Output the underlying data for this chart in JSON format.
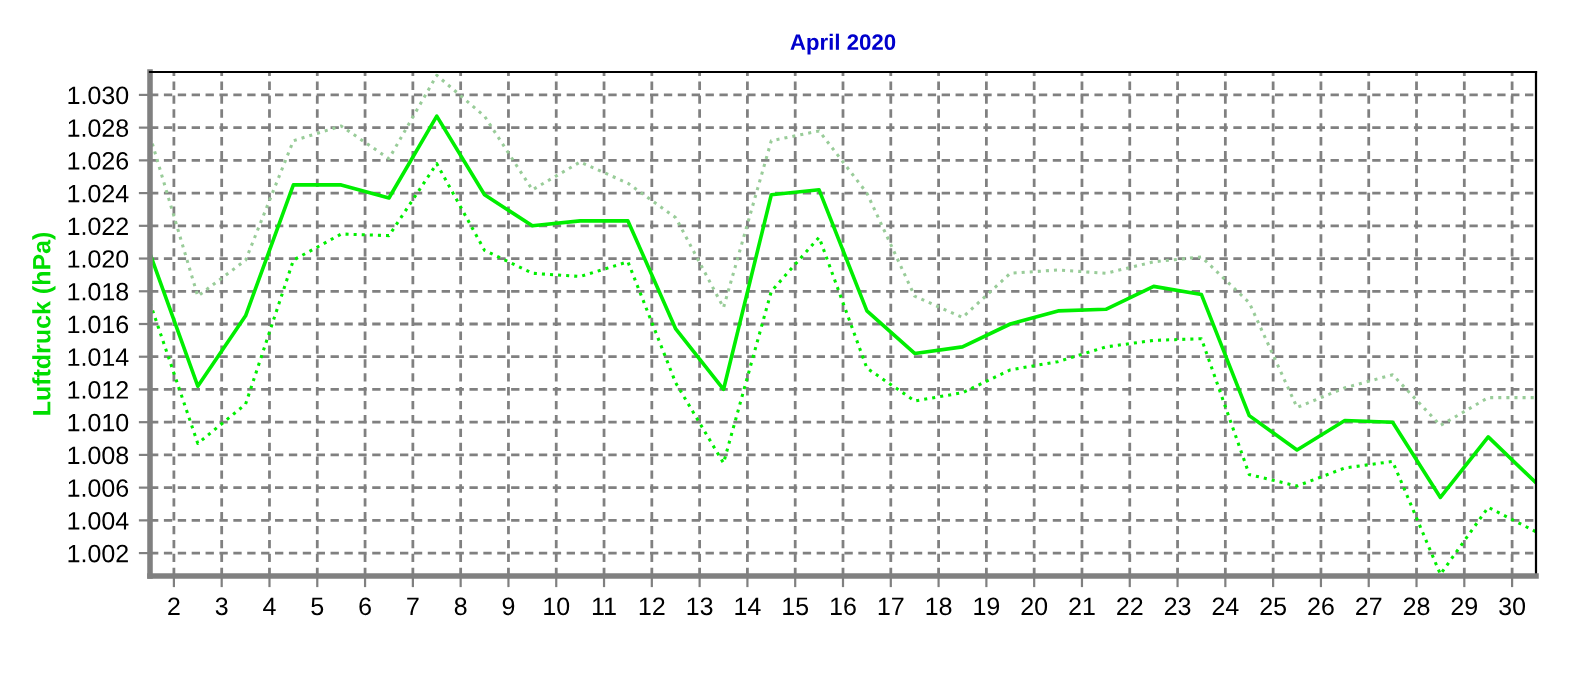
{
  "chart_data": {
    "type": "line",
    "title": "April 2020",
    "ylabel": "Luftdruck (hPa)",
    "x": [
      1.5,
      2.5,
      3.5,
      4.5,
      5.5,
      6.5,
      7.5,
      8.5,
      9.5,
      10.5,
      11.5,
      12.5,
      13.5,
      14.5,
      15.5,
      16.5,
      17.5,
      18.5,
      19.5,
      20.5,
      21.5,
      22.5,
      23.5,
      24.5,
      25.5,
      26.5,
      27.5,
      28.5,
      29.5,
      30.5
    ],
    "series": [
      {
        "color": "#00ee00",
        "line_style": "solid",
        "values": [
          1020.3,
          1012.2,
          1016.5,
          1024.5,
          1024.5,
          1023.7,
          1028.7,
          1023.9,
          1022.0,
          1022.3,
          1022.3,
          1015.7,
          1012.0,
          1023.9,
          1024.2,
          1016.8,
          1014.2,
          1014.6,
          1016.0,
          1016.8,
          1016.9,
          1018.3,
          1017.8,
          1010.4,
          1008.3,
          1010.1,
          1010.0,
          1005.4,
          1009.1,
          1006.3
        ]
      },
      {
        "color": "#99cc99",
        "line_style": "dotted",
        "values": [
          1027.5,
          1017.7,
          1019.9,
          1027.2,
          1028.1,
          1026.1,
          1031.2,
          1028.7,
          1024.2,
          1025.9,
          1024.6,
          1022.5,
          1017.0,
          1027.2,
          1027.8,
          1024.0,
          1017.7,
          1016.4,
          1019.1,
          1019.3,
          1019.1,
          1019.8,
          1020.1,
          1017.3,
          1010.9,
          1012.1,
          1012.9,
          1009.8,
          1011.5,
          1011.5
        ]
      },
      {
        "color": "#00ee00",
        "line_style": "dotted",
        "values": [
          1017.3,
          1008.7,
          1011.1,
          1019.9,
          1021.5,
          1021.4,
          1025.8,
          1020.5,
          1019.1,
          1018.9,
          1019.8,
          1012.4,
          1007.5,
          1018.0,
          1021.3,
          1013.3,
          1011.3,
          1011.8,
          1013.2,
          1013.7,
          1014.6,
          1015.0,
          1015.1,
          1006.8,
          1006.1,
          1007.2,
          1007.6,
          1000.7,
          1004.8,
          1003.3
        ]
      }
    ],
    "xlim": [
      1.5,
      30.5
    ],
    "xticks": [
      2,
      3,
      4,
      5,
      6,
      7,
      8,
      9,
      10,
      11,
      12,
      13,
      14,
      15,
      16,
      17,
      18,
      19,
      20,
      21,
      22,
      23,
      24,
      25,
      26,
      27,
      28,
      29,
      30
    ],
    "ylim": [
      1000.6,
      1031.4
    ],
    "yticks": [
      {
        "value": 1002,
        "label": "1.002"
      },
      {
        "value": 1004,
        "label": "1.004"
      },
      {
        "value": 1006,
        "label": "1.006"
      },
      {
        "value": 1008,
        "label": "1.008"
      },
      {
        "value": 1010,
        "label": "1.010"
      },
      {
        "value": 1012,
        "label": "1.012"
      },
      {
        "value": 1014,
        "label": "1.014"
      },
      {
        "value": 1016,
        "label": "1.016"
      },
      {
        "value": 1018,
        "label": "1.018"
      },
      {
        "value": 1020,
        "label": "1.020"
      },
      {
        "value": 1022,
        "label": "1.022"
      },
      {
        "value": 1024,
        "label": "1.024"
      },
      {
        "value": 1026,
        "label": "1.026"
      },
      {
        "value": 1028,
        "label": "1.028"
      },
      {
        "value": 1030,
        "label": "1.030"
      }
    ],
    "grid": true
  }
}
